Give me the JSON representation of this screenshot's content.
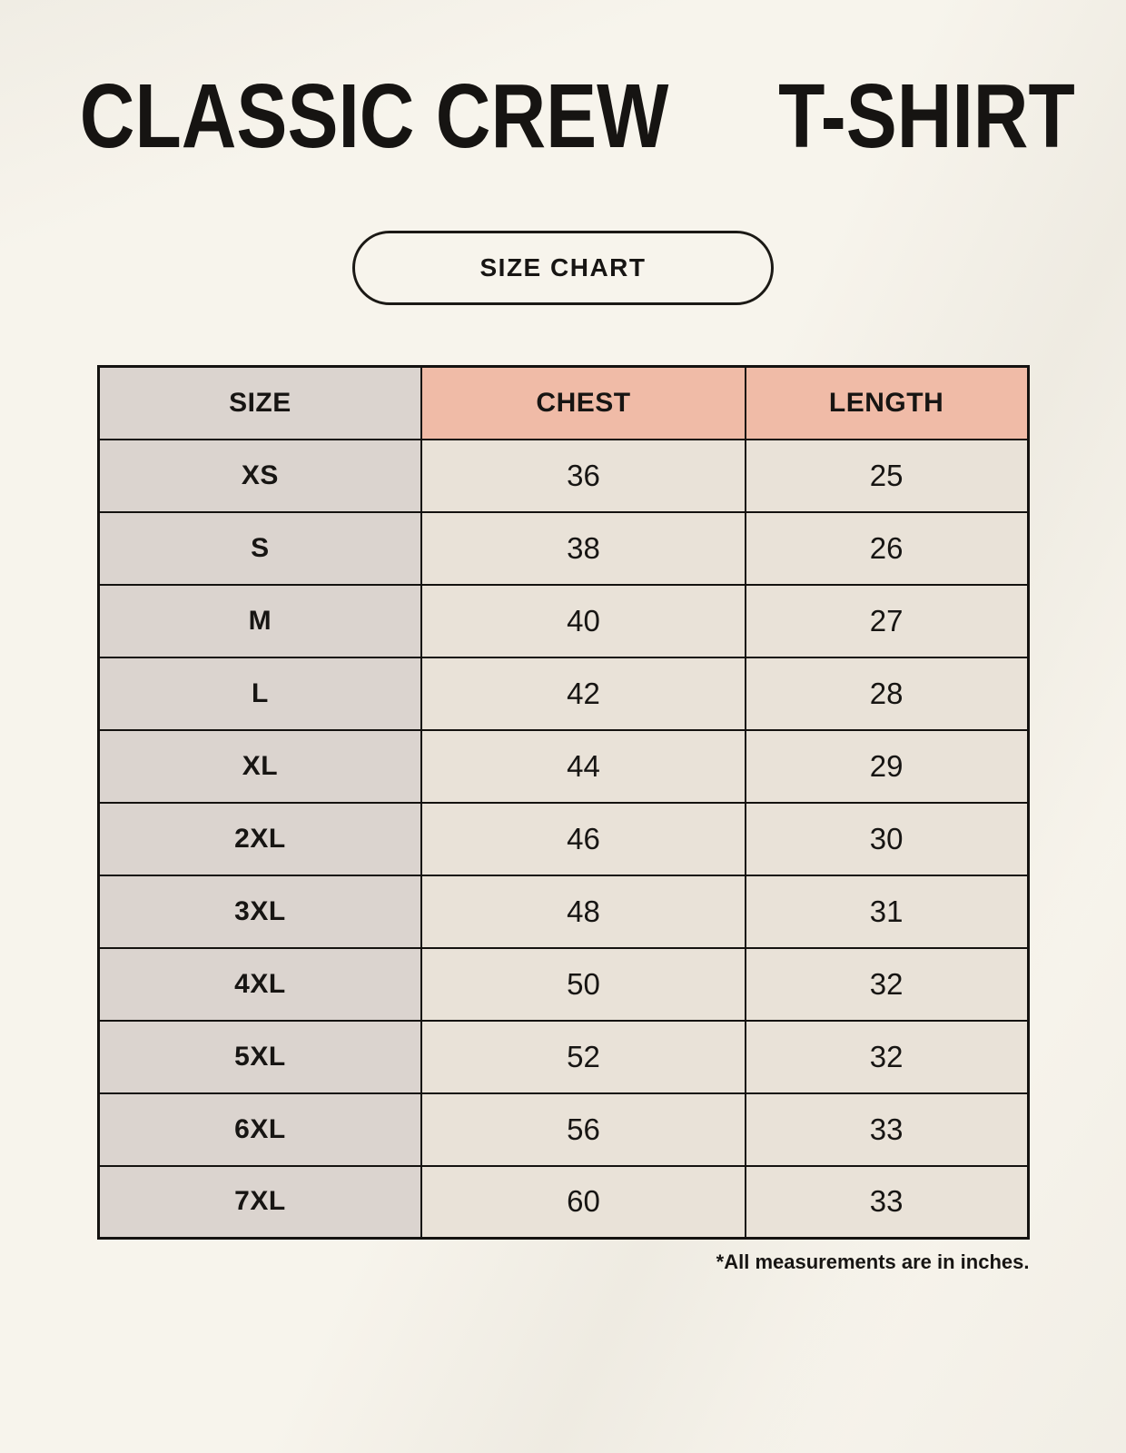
{
  "page": {
    "title_line1": "CLASSIC CREW",
    "title_line2": "T-SHIRT",
    "size_chart_button": "SIZE CHART",
    "footnote": "*All measurements are in inches."
  },
  "size_table": {
    "columns": [
      "SIZE",
      "CHEST",
      "LENGTH"
    ],
    "rows": [
      [
        "XS",
        "36",
        "25"
      ],
      [
        "S",
        "38",
        "26"
      ],
      [
        "M",
        "40",
        "27"
      ],
      [
        "L",
        "42",
        "28"
      ],
      [
        "XL",
        "44",
        "29"
      ],
      [
        "2XL",
        "46",
        "30"
      ],
      [
        "3XL",
        "48",
        "31"
      ],
      [
        "4XL",
        "50",
        "32"
      ],
      [
        "5XL",
        "52",
        "32"
      ],
      [
        "6XL",
        "56",
        "33"
      ],
      [
        "7XL",
        "60",
        "33"
      ]
    ],
    "units_note": "inches"
  },
  "colors": {
    "page_background": "#f7f4ec",
    "header_accent": "#f0bba7",
    "size_column_background": "#dbd4cf",
    "value_cell_background": "#e9e2d8",
    "border": "#141210",
    "text": "#171513"
  }
}
